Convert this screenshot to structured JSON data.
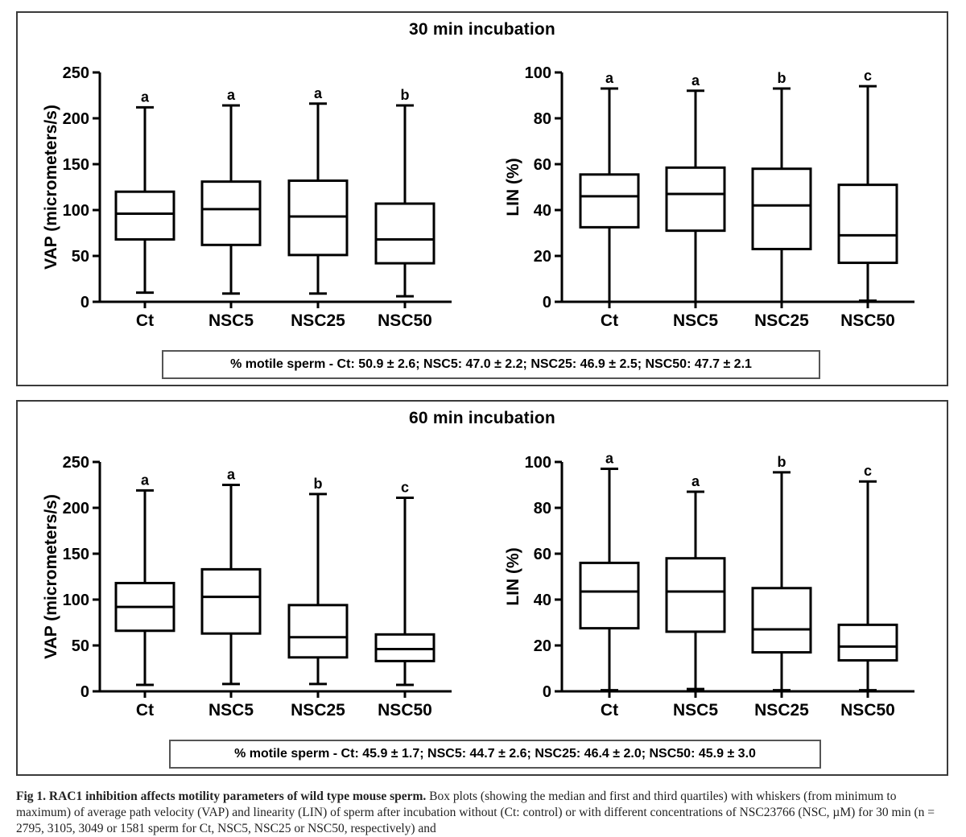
{
  "panels": [
    {
      "title": "30 min incubation",
      "motile": "% motile sperm - Ct: 50.9 ± 2.6; NSC5: 47.0 ± 2.2; NSC25: 46.9 ± 2.5; NSC50: 47.7 ± 2.1"
    },
    {
      "title": "60 min incubation",
      "motile": "% motile sperm - Ct: 45.9 ± 1.7; NSC5: 44.7 ± 2.6; NSC25: 46.4 ± 2.0; NSC50: 45.9 ± 3.0"
    }
  ],
  "caption": {
    "label": "Fig 1. RAC1 inhibition affects motility parameters of wild type mouse sperm.",
    "text": " Box plots (showing the median and first and third quartiles) with whiskers (from minimum to maximum) of average path velocity (VAP) and linearity (LIN) of sperm after incubation without (Ct: control) or with different concentrations of NSC23766 (NSC, µM) for 30 min (n = 2795, 3105, 3049 or 1581 sperm for Ct, NSC5, NSC25 or NSC50, respectively) and"
  },
  "chart_data": [
    {
      "type": "box",
      "panel": "30 min incubation",
      "categories": [
        "Ct",
        "NSC5",
        "NSC25",
        "NSC50"
      ],
      "ylabel": "VAP (micrometers/s)",
      "ylim": [
        0,
        250
      ],
      "yticks": [
        0,
        50,
        100,
        150,
        200,
        250
      ],
      "boxes": [
        {
          "min": 10,
          "q1": 68,
          "median": 96,
          "q3": 120,
          "max": 212
        },
        {
          "min": 9,
          "q1": 62,
          "median": 101,
          "q3": 131,
          "max": 214
        },
        {
          "min": 9,
          "q1": 51,
          "median": 93,
          "q3": 132,
          "max": 216
        },
        {
          "min": 6,
          "q1": 42,
          "median": 68,
          "q3": 107,
          "max": 214
        }
      ],
      "letters": [
        "a",
        "a",
        "a",
        "b"
      ]
    },
    {
      "type": "box",
      "panel": "30 min incubation",
      "categories": [
        "Ct",
        "NSC5",
        "NSC25",
        "NSC50"
      ],
      "ylabel": "LIN (%)",
      "ylim": [
        0,
        100
      ],
      "yticks": [
        0,
        20,
        40,
        60,
        80,
        100
      ],
      "boxes": [
        {
          "min": 0,
          "q1": 32.5,
          "median": 46,
          "q3": 55.5,
          "max": 93
        },
        {
          "min": 0,
          "q1": 31,
          "median": 47,
          "q3": 58.5,
          "max": 92
        },
        {
          "min": 0,
          "q1": 23,
          "median": 42,
          "q3": 58,
          "max": 93
        },
        {
          "min": 0.5,
          "q1": 17,
          "median": 29,
          "q3": 51,
          "max": 94
        }
      ],
      "letters": [
        "a",
        "a",
        "b",
        "c"
      ]
    },
    {
      "type": "box",
      "panel": "60 min incubation",
      "categories": [
        "Ct",
        "NSC5",
        "NSC25",
        "NSC50"
      ],
      "ylabel": "VAP (micrometers/s)",
      "ylim": [
        0,
        250
      ],
      "yticks": [
        0,
        50,
        100,
        150,
        200,
        250
      ],
      "boxes": [
        {
          "min": 7,
          "q1": 66,
          "median": 92,
          "q3": 118,
          "max": 219
        },
        {
          "min": 8,
          "q1": 63,
          "median": 103,
          "q3": 133,
          "max": 225
        },
        {
          "min": 8,
          "q1": 37,
          "median": 59,
          "q3": 94,
          "max": 215
        },
        {
          "min": 7,
          "q1": 33,
          "median": 46,
          "q3": 62,
          "max": 211
        }
      ],
      "letters": [
        "a",
        "a",
        "b",
        "c"
      ]
    },
    {
      "type": "box",
      "panel": "60 min incubation",
      "categories": [
        "Ct",
        "NSC5",
        "NSC25",
        "NSC50"
      ],
      "ylabel": "LIN (%)",
      "ylim": [
        0,
        100
      ],
      "yticks": [
        0,
        20,
        40,
        60,
        80,
        100
      ],
      "boxes": [
        {
          "min": 0.5,
          "q1": 27.5,
          "median": 43.5,
          "q3": 56,
          "max": 97
        },
        {
          "min": 1,
          "q1": 26,
          "median": 43.5,
          "q3": 58,
          "max": 87
        },
        {
          "min": 0.5,
          "q1": 17,
          "median": 27,
          "q3": 45,
          "max": 95.5
        },
        {
          "min": 0.5,
          "q1": 13.5,
          "median": 19.5,
          "q3": 29,
          "max": 91.5
        }
      ],
      "letters": [
        "a",
        "a",
        "b",
        "c"
      ]
    }
  ]
}
